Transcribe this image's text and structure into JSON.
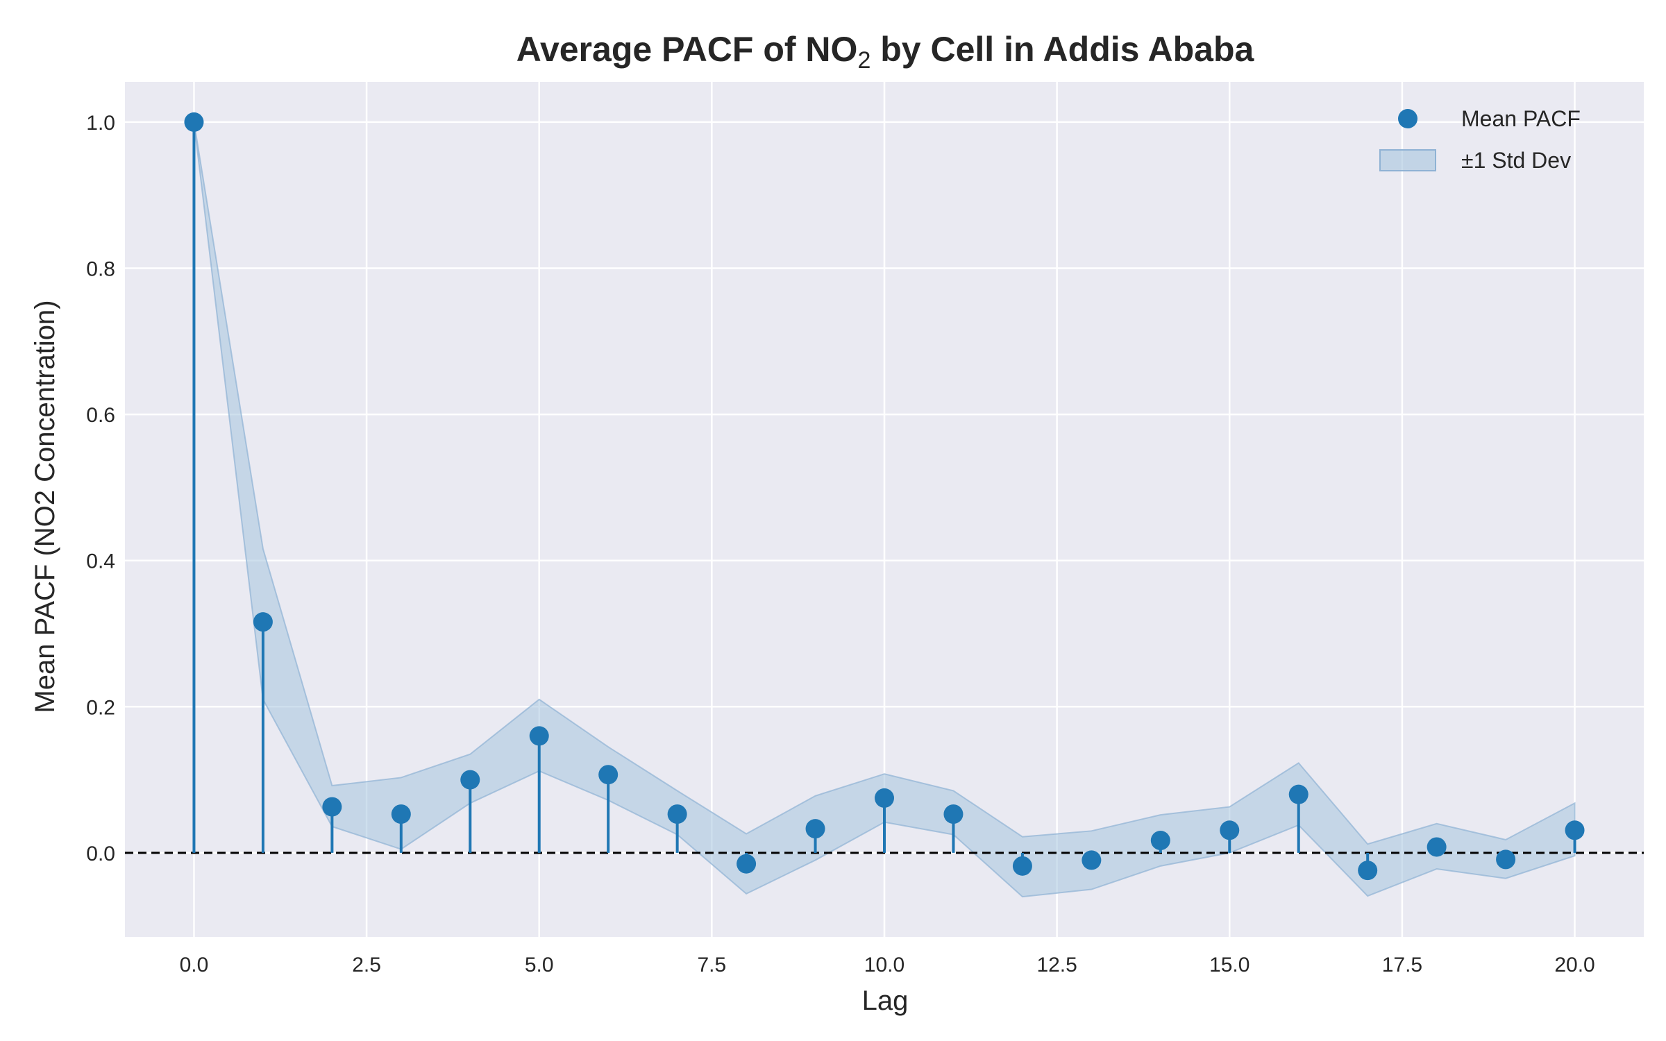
{
  "chart_data": {
    "type": "scatter",
    "title": {
      "prefix": "Average PACF of NO",
      "subscript": "2",
      "suffix": " by Cell in Addis Ababa"
    },
    "xlabel": "Lag",
    "ylabel": "Mean PACF (NO2 Concentration)",
    "xlim": [
      -1,
      21
    ],
    "ylim": [
      -0.115,
      1.055
    ],
    "xticks": [
      "0.0",
      "2.5",
      "5.0",
      "7.5",
      "10.0",
      "12.5",
      "15.0",
      "17.5",
      "20.0"
    ],
    "xtick_values": [
      0,
      2.5,
      5,
      7.5,
      10,
      12.5,
      15,
      17.5,
      20
    ],
    "yticks": [
      "0.0",
      "0.2",
      "0.4",
      "0.6",
      "0.8",
      "1.0"
    ],
    "ytick_values": [
      0,
      0.2,
      0.4,
      0.6,
      0.8,
      1.0
    ],
    "grid": true,
    "legend_position": "top-right",
    "reference_line": 0,
    "series": [
      {
        "name": "Mean PACF",
        "style": "stem",
        "x": [
          0,
          1,
          2,
          3,
          4,
          5,
          6,
          7,
          8,
          9,
          10,
          11,
          12,
          13,
          14,
          15,
          16,
          17,
          18,
          19,
          20
        ],
        "values": [
          1.0,
          0.316,
          0.063,
          0.053,
          0.1,
          0.16,
          0.107,
          0.053,
          -0.015,
          0.033,
          0.075,
          0.053,
          -0.018,
          -0.01,
          0.017,
          0.031,
          0.08,
          -0.024,
          0.008,
          -0.009,
          0.031
        ]
      },
      {
        "name": "±1 Std Dev",
        "style": "band",
        "x": [
          0,
          1,
          2,
          3,
          4,
          5,
          6,
          7,
          8,
          9,
          10,
          11,
          12,
          13,
          14,
          15,
          16,
          17,
          18,
          19,
          20
        ],
        "upper": [
          1.0,
          0.416,
          0.092,
          0.103,
          0.135,
          0.21,
          0.145,
          0.085,
          0.026,
          0.078,
          0.108,
          0.085,
          0.022,
          0.03,
          0.052,
          0.063,
          0.123,
          0.012,
          0.04,
          0.018,
          0.068
        ],
        "lower": [
          1.0,
          0.21,
          0.036,
          0.005,
          0.068,
          0.112,
          0.072,
          0.025,
          -0.056,
          -0.01,
          0.042,
          0.025,
          -0.06,
          -0.05,
          -0.018,
          0.0,
          0.038,
          -0.059,
          -0.022,
          -0.035,
          -0.004
        ]
      }
    ]
  },
  "colors": {
    "figure_bg": "#ffffff",
    "axes_bg": "#eaeaf2",
    "grid": "#ffffff",
    "series": "#1f77b4",
    "band_fill": "#a6c4de",
    "reference_line": "#000000",
    "text": "#262626"
  }
}
